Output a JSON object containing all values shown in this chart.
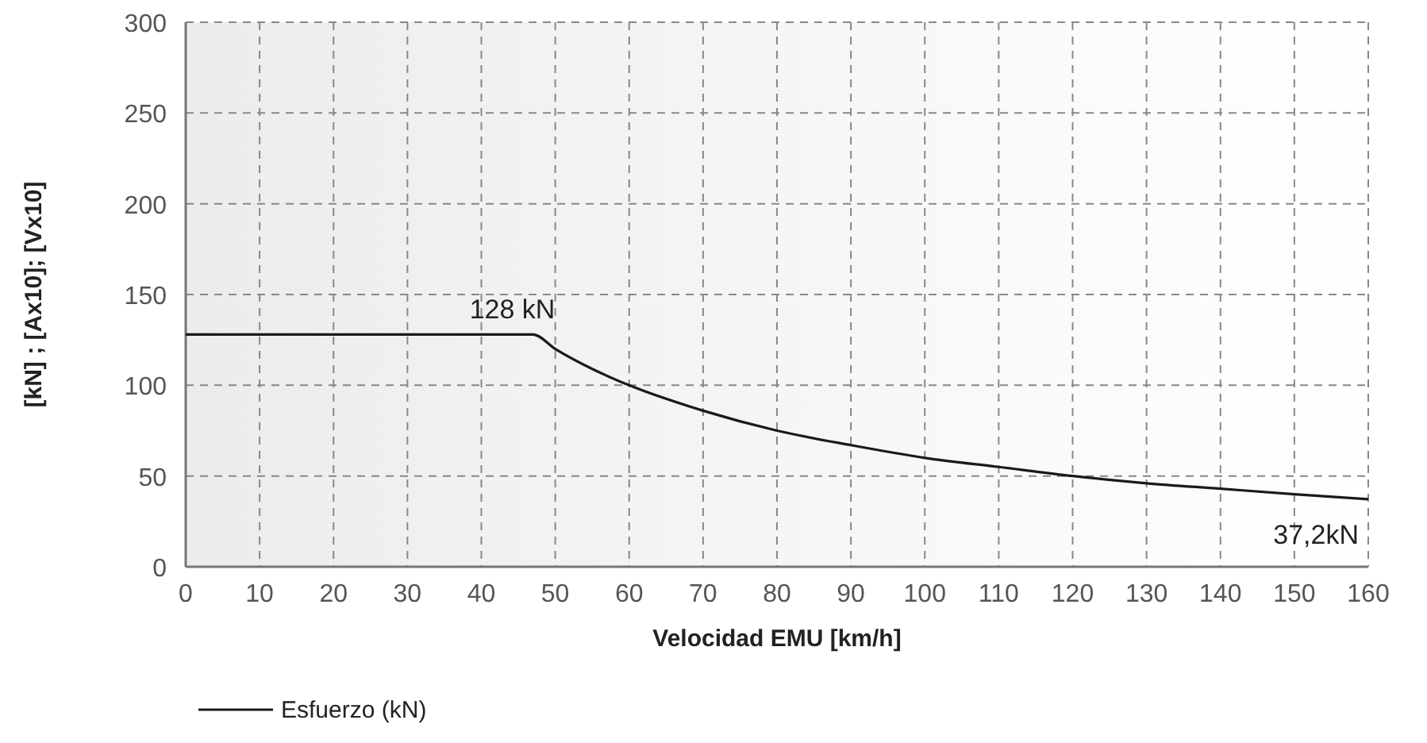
{
  "chart_data": {
    "type": "line",
    "xlabel": "Velocidad EMU [km/h]",
    "ylabel": "[kN] ; [Ax10]; [Vx10]",
    "x": [
      0,
      10,
      20,
      30,
      40,
      47,
      50,
      55,
      60,
      70,
      80,
      90,
      100,
      110,
      120,
      130,
      140,
      150,
      160
    ],
    "series": [
      {
        "name": "Esfuerzo (kN)",
        "color": "#1a1a1a",
        "values": [
          128,
          128,
          128,
          128,
          128,
          128,
          120,
          109,
          100,
          86,
          75,
          67,
          60,
          55,
          50,
          46,
          43,
          40,
          37.2
        ]
      }
    ],
    "xlim": [
      0,
      160
    ],
    "xticks": [
      0,
      10,
      20,
      30,
      40,
      50,
      60,
      70,
      80,
      90,
      100,
      110,
      120,
      130,
      140,
      150,
      160
    ],
    "ylim": [
      0,
      300
    ],
    "yticks": [
      0,
      50,
      100,
      150,
      200,
      250,
      300
    ],
    "grid": true,
    "legend": "bottom left",
    "marker": "none",
    "line_style": "solid",
    "annotations": [
      {
        "text": "128 kN",
        "x": 47,
        "y": 128
      },
      {
        "text": "37,2kN",
        "x": 160,
        "y": 37.2
      }
    ]
  }
}
